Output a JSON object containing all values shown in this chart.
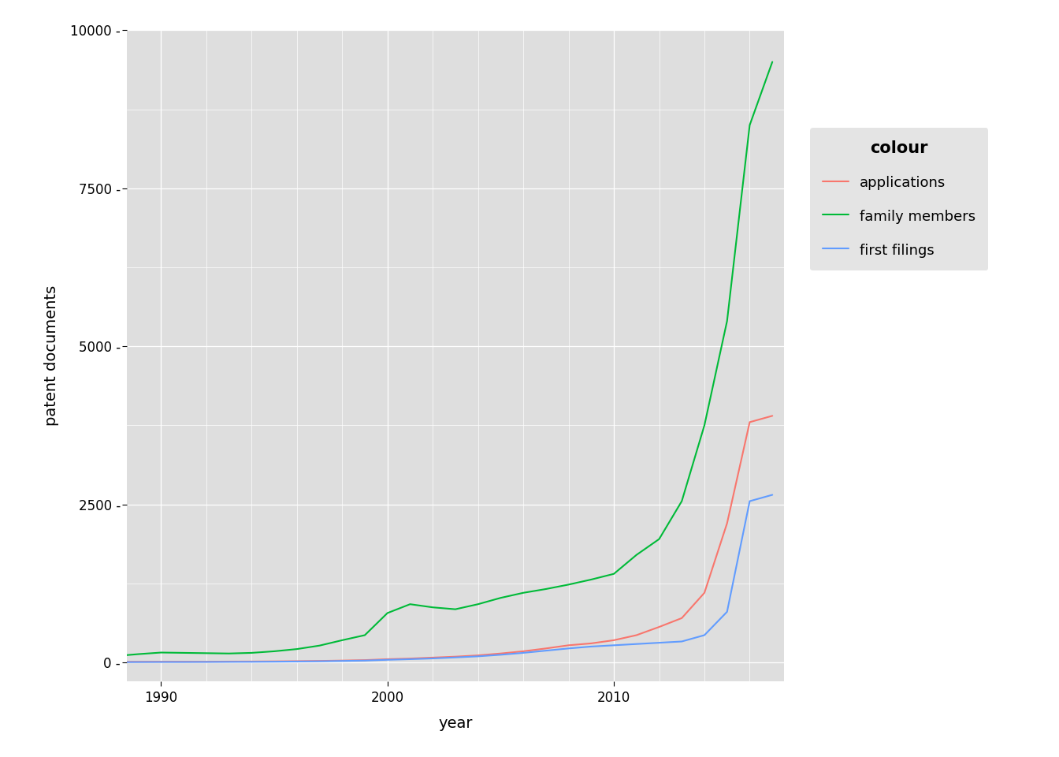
{
  "title": "",
  "xlabel": "year",
  "ylabel": "patent documents",
  "legend_title": "colour",
  "background_color": "#DEDEDE",
  "xlim": [
    1988.5,
    2017.5
  ],
  "ylim": [
    -300,
    10000
  ],
  "yticks": [
    0,
    2500,
    5000,
    7500,
    10000
  ],
  "ytick_labels": [
    "0 -",
    "2500 -",
    "5000 -",
    "7500 -",
    "10000 -"
  ],
  "xticks": [
    1990,
    2000,
    2010
  ],
  "series": {
    "applications": {
      "color": "#F8766D",
      "years": [
        1988,
        1989,
        1990,
        1991,
        1992,
        1993,
        1994,
        1995,
        1996,
        1997,
        1998,
        1999,
        2000,
        2001,
        2002,
        2003,
        2004,
        2005,
        2006,
        2007,
        2008,
        2009,
        2010,
        2011,
        2012,
        2013,
        2014,
        2015,
        2016,
        2017
      ],
      "values": [
        8,
        9,
        10,
        10,
        10,
        12,
        13,
        15,
        18,
        22,
        28,
        35,
        50,
        60,
        75,
        90,
        110,
        140,
        175,
        220,
        270,
        300,
        350,
        430,
        560,
        700,
        1100,
        2200,
        3800,
        3900
      ]
    },
    "family_members": {
      "color": "#00BA38",
      "years": [
        1988,
        1989,
        1990,
        1991,
        1992,
        1993,
        1994,
        1995,
        1996,
        1997,
        1998,
        1999,
        2000,
        2001,
        2002,
        2003,
        2004,
        2005,
        2006,
        2007,
        2008,
        2009,
        2010,
        2011,
        2012,
        2013,
        2014,
        2015,
        2016,
        2017
      ],
      "values": [
        100,
        130,
        155,
        150,
        145,
        140,
        150,
        175,
        210,
        265,
        350,
        430,
        780,
        920,
        870,
        840,
        920,
        1020,
        1100,
        1160,
        1230,
        1310,
        1400,
        1700,
        1950,
        2550,
        3750,
        5400,
        8500,
        9500
      ]
    },
    "first_filings": {
      "color": "#619CFF",
      "years": [
        1988,
        1989,
        1990,
        1991,
        1992,
        1993,
        1994,
        1995,
        1996,
        1997,
        1998,
        1999,
        2000,
        2001,
        2002,
        2003,
        2004,
        2005,
        2006,
        2007,
        2008,
        2009,
        2010,
        2011,
        2012,
        2013,
        2014,
        2015,
        2016,
        2017
      ],
      "values": [
        3,
        4,
        5,
        5,
        6,
        7,
        8,
        10,
        13,
        17,
        22,
        28,
        40,
        50,
        62,
        78,
        95,
        120,
        150,
        185,
        220,
        250,
        270,
        290,
        310,
        330,
        430,
        800,
        2550,
        2650
      ]
    }
  },
  "line_width": 1.5,
  "axis_label_fontsize": 14,
  "tick_fontsize": 12,
  "legend_fontsize": 13,
  "legend_title_fontsize": 15
}
